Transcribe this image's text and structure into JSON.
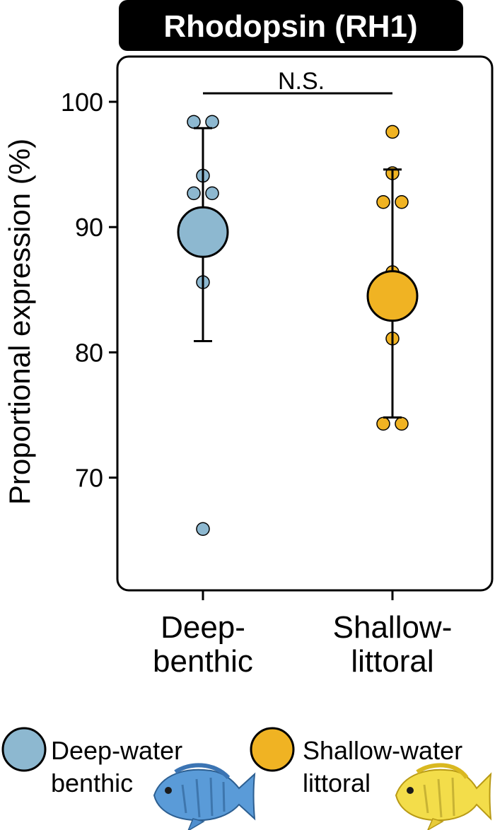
{
  "chart_data": {
    "type": "scatter",
    "title": "Rhodopsin (RH1)",
    "ylabel": "Proportional expression (%)",
    "ylim": [
      62,
      104
    ],
    "yticks": [
      70,
      80,
      90,
      100
    ],
    "categories": [
      {
        "line1": "Deep-",
        "line2": "benthic"
      },
      {
        "line1": "Shallow-",
        "line2": "littoral"
      }
    ],
    "series": [
      {
        "name": "Deep-water benthic",
        "color": "#8db8d0",
        "mean": 89.6,
        "error_low": 80.9,
        "error_high": 97.9,
        "points": [
          98.4,
          98.4,
          94.1,
          92.7,
          92.7,
          85.6,
          65.9
        ]
      },
      {
        "name": "Shallow-water littoral",
        "color": "#f0b323",
        "mean": 84.5,
        "error_low": 74.8,
        "error_high": 94.6,
        "points": [
          97.6,
          94.3,
          92.0,
          92.0,
          86.4,
          81.1,
          74.3,
          74.3
        ]
      }
    ],
    "significance": "N.S.",
    "legend": {
      "placement": "bottom",
      "items": [
        {
          "line1": "Deep-water",
          "line2": "benthic",
          "color": "#8db8d0",
          "icon": "blue-cichlid-fish-icon"
        },
        {
          "line1": "Shallow-water",
          "line2": "littoral",
          "color": "#f0b323",
          "icon": "yellow-cichlid-fish-icon"
        }
      ]
    }
  }
}
